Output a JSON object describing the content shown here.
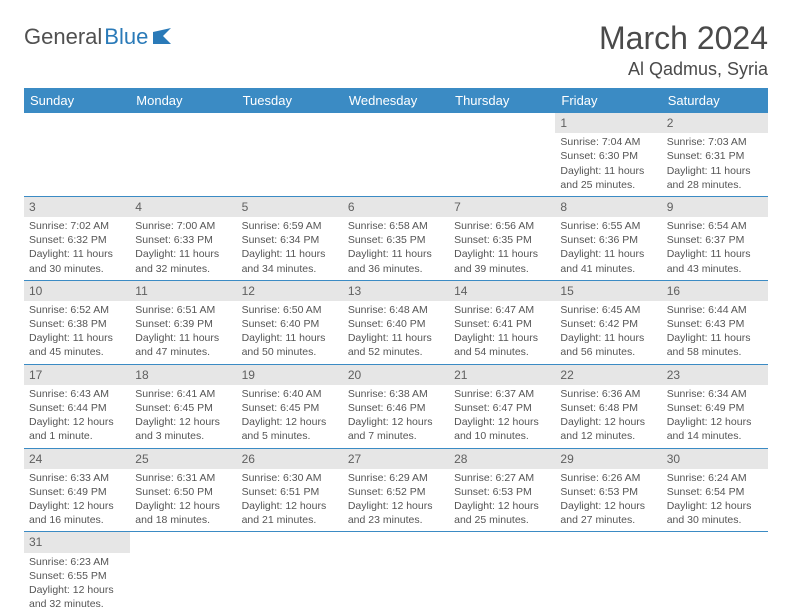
{
  "logo": {
    "part1": "General",
    "part2": "Blue"
  },
  "title": "March 2024",
  "location": "Al Qadmus, Syria",
  "colors": {
    "header_bg": "#3b8bc4",
    "header_text": "#ffffff",
    "daynum_bg": "#e6e6e6",
    "border": "#3b8bc4",
    "text": "#4a4a4a"
  },
  "weekdays": [
    "Sunday",
    "Monday",
    "Tuesday",
    "Wednesday",
    "Thursday",
    "Friday",
    "Saturday"
  ],
  "weeks": [
    [
      null,
      null,
      null,
      null,
      null,
      {
        "n": "1",
        "sr": "Sunrise: 7:04 AM",
        "ss": "Sunset: 6:30 PM",
        "dl": "Daylight: 11 hours and 25 minutes."
      },
      {
        "n": "2",
        "sr": "Sunrise: 7:03 AM",
        "ss": "Sunset: 6:31 PM",
        "dl": "Daylight: 11 hours and 28 minutes."
      }
    ],
    [
      {
        "n": "3",
        "sr": "Sunrise: 7:02 AM",
        "ss": "Sunset: 6:32 PM",
        "dl": "Daylight: 11 hours and 30 minutes."
      },
      {
        "n": "4",
        "sr": "Sunrise: 7:00 AM",
        "ss": "Sunset: 6:33 PM",
        "dl": "Daylight: 11 hours and 32 minutes."
      },
      {
        "n": "5",
        "sr": "Sunrise: 6:59 AM",
        "ss": "Sunset: 6:34 PM",
        "dl": "Daylight: 11 hours and 34 minutes."
      },
      {
        "n": "6",
        "sr": "Sunrise: 6:58 AM",
        "ss": "Sunset: 6:35 PM",
        "dl": "Daylight: 11 hours and 36 minutes."
      },
      {
        "n": "7",
        "sr": "Sunrise: 6:56 AM",
        "ss": "Sunset: 6:35 PM",
        "dl": "Daylight: 11 hours and 39 minutes."
      },
      {
        "n": "8",
        "sr": "Sunrise: 6:55 AM",
        "ss": "Sunset: 6:36 PM",
        "dl": "Daylight: 11 hours and 41 minutes."
      },
      {
        "n": "9",
        "sr": "Sunrise: 6:54 AM",
        "ss": "Sunset: 6:37 PM",
        "dl": "Daylight: 11 hours and 43 minutes."
      }
    ],
    [
      {
        "n": "10",
        "sr": "Sunrise: 6:52 AM",
        "ss": "Sunset: 6:38 PM",
        "dl": "Daylight: 11 hours and 45 minutes."
      },
      {
        "n": "11",
        "sr": "Sunrise: 6:51 AM",
        "ss": "Sunset: 6:39 PM",
        "dl": "Daylight: 11 hours and 47 minutes."
      },
      {
        "n": "12",
        "sr": "Sunrise: 6:50 AM",
        "ss": "Sunset: 6:40 PM",
        "dl": "Daylight: 11 hours and 50 minutes."
      },
      {
        "n": "13",
        "sr": "Sunrise: 6:48 AM",
        "ss": "Sunset: 6:40 PM",
        "dl": "Daylight: 11 hours and 52 minutes."
      },
      {
        "n": "14",
        "sr": "Sunrise: 6:47 AM",
        "ss": "Sunset: 6:41 PM",
        "dl": "Daylight: 11 hours and 54 minutes."
      },
      {
        "n": "15",
        "sr": "Sunrise: 6:45 AM",
        "ss": "Sunset: 6:42 PM",
        "dl": "Daylight: 11 hours and 56 minutes."
      },
      {
        "n": "16",
        "sr": "Sunrise: 6:44 AM",
        "ss": "Sunset: 6:43 PM",
        "dl": "Daylight: 11 hours and 58 minutes."
      }
    ],
    [
      {
        "n": "17",
        "sr": "Sunrise: 6:43 AM",
        "ss": "Sunset: 6:44 PM",
        "dl": "Daylight: 12 hours and 1 minute."
      },
      {
        "n": "18",
        "sr": "Sunrise: 6:41 AM",
        "ss": "Sunset: 6:45 PM",
        "dl": "Daylight: 12 hours and 3 minutes."
      },
      {
        "n": "19",
        "sr": "Sunrise: 6:40 AM",
        "ss": "Sunset: 6:45 PM",
        "dl": "Daylight: 12 hours and 5 minutes."
      },
      {
        "n": "20",
        "sr": "Sunrise: 6:38 AM",
        "ss": "Sunset: 6:46 PM",
        "dl": "Daylight: 12 hours and 7 minutes."
      },
      {
        "n": "21",
        "sr": "Sunrise: 6:37 AM",
        "ss": "Sunset: 6:47 PM",
        "dl": "Daylight: 12 hours and 10 minutes."
      },
      {
        "n": "22",
        "sr": "Sunrise: 6:36 AM",
        "ss": "Sunset: 6:48 PM",
        "dl": "Daylight: 12 hours and 12 minutes."
      },
      {
        "n": "23",
        "sr": "Sunrise: 6:34 AM",
        "ss": "Sunset: 6:49 PM",
        "dl": "Daylight: 12 hours and 14 minutes."
      }
    ],
    [
      {
        "n": "24",
        "sr": "Sunrise: 6:33 AM",
        "ss": "Sunset: 6:49 PM",
        "dl": "Daylight: 12 hours and 16 minutes."
      },
      {
        "n": "25",
        "sr": "Sunrise: 6:31 AM",
        "ss": "Sunset: 6:50 PM",
        "dl": "Daylight: 12 hours and 18 minutes."
      },
      {
        "n": "26",
        "sr": "Sunrise: 6:30 AM",
        "ss": "Sunset: 6:51 PM",
        "dl": "Daylight: 12 hours and 21 minutes."
      },
      {
        "n": "27",
        "sr": "Sunrise: 6:29 AM",
        "ss": "Sunset: 6:52 PM",
        "dl": "Daylight: 12 hours and 23 minutes."
      },
      {
        "n": "28",
        "sr": "Sunrise: 6:27 AM",
        "ss": "Sunset: 6:53 PM",
        "dl": "Daylight: 12 hours and 25 minutes."
      },
      {
        "n": "29",
        "sr": "Sunrise: 6:26 AM",
        "ss": "Sunset: 6:53 PM",
        "dl": "Daylight: 12 hours and 27 minutes."
      },
      {
        "n": "30",
        "sr": "Sunrise: 6:24 AM",
        "ss": "Sunset: 6:54 PM",
        "dl": "Daylight: 12 hours and 30 minutes."
      }
    ],
    [
      {
        "n": "31",
        "sr": "Sunrise: 6:23 AM",
        "ss": "Sunset: 6:55 PM",
        "dl": "Daylight: 12 hours and 32 minutes."
      },
      null,
      null,
      null,
      null,
      null,
      null
    ]
  ]
}
